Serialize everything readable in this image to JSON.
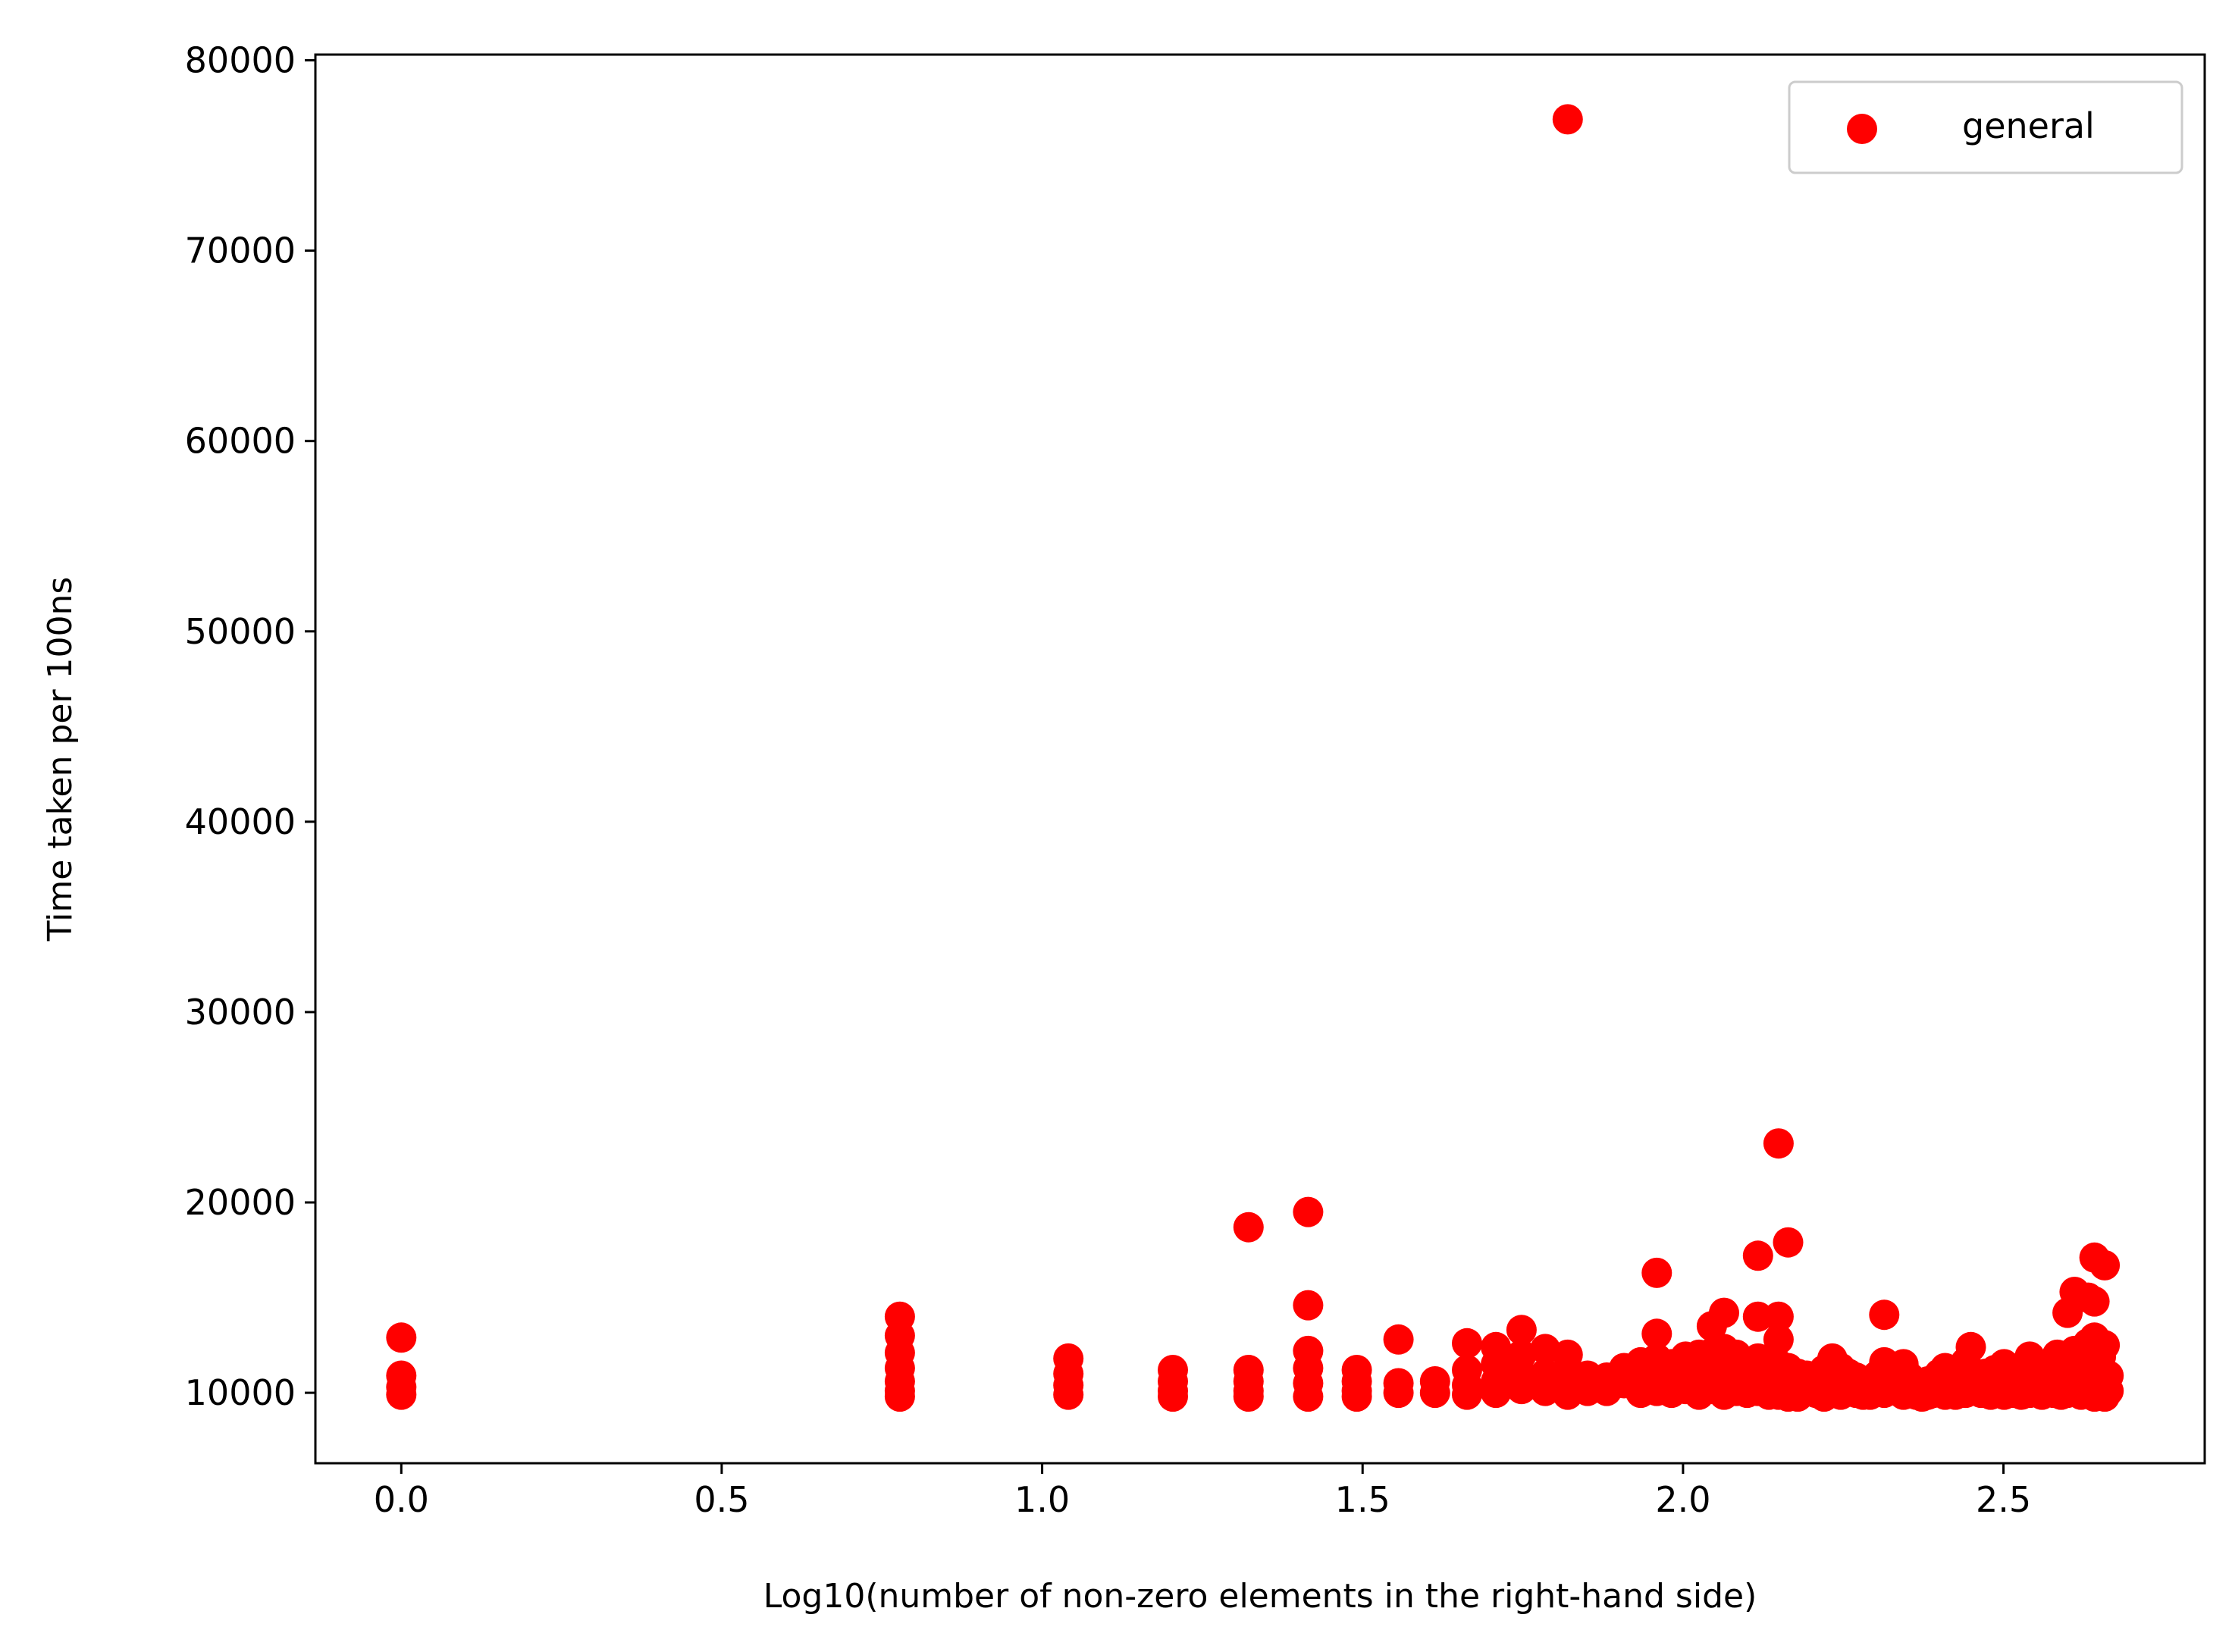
{
  "colors": {
    "series": "#ff0000",
    "axes": "#000000",
    "legend_border": "#cccccc",
    "background": "#ffffff"
  },
  "chart_data": {
    "type": "scatter",
    "title": "",
    "xlabel": "Log10(number of non-zero elements in the right-hand side)",
    "ylabel": "Time taken per 100ns",
    "xlim": [
      -0.134,
      2.814
    ],
    "ylim": [
      6300,
      80300
    ],
    "x_ticks": [
      0.0,
      0.5,
      1.0,
      1.5,
      2.0,
      2.5
    ],
    "x_tick_labels": [
      "0.0",
      "0.5",
      "1.0",
      "1.5",
      "2.0",
      "2.5"
    ],
    "y_ticks": [
      10000,
      20000,
      30000,
      40000,
      50000,
      60000,
      70000,
      80000
    ],
    "y_tick_labels": [
      "10000",
      "20000",
      "30000",
      "40000",
      "50000",
      "60000",
      "70000",
      "80000"
    ],
    "grid": false,
    "legend": {
      "position": "top-right",
      "entries": [
        "general"
      ]
    },
    "series": [
      {
        "name": "general",
        "color": "#ff0000",
        "points": [
          [
            0.0,
            12900
          ],
          [
            0.0,
            10900
          ],
          [
            0.0,
            10300
          ],
          [
            0.0,
            9900
          ],
          [
            0.778,
            14000
          ],
          [
            0.778,
            13000
          ],
          [
            0.778,
            12100
          ],
          [
            0.778,
            11300
          ],
          [
            0.778,
            10600
          ],
          [
            0.778,
            10100
          ],
          [
            0.778,
            9800
          ],
          [
            1.041,
            11800
          ],
          [
            1.041,
            11000
          ],
          [
            1.041,
            10400
          ],
          [
            1.041,
            9900
          ],
          [
            1.204,
            11200
          ],
          [
            1.204,
            10600
          ],
          [
            1.204,
            10100
          ],
          [
            1.204,
            9800
          ],
          [
            1.322,
            18700
          ],
          [
            1.322,
            11200
          ],
          [
            1.322,
            10600
          ],
          [
            1.322,
            10100
          ],
          [
            1.322,
            9800
          ],
          [
            1.415,
            19500
          ],
          [
            1.415,
            14600
          ],
          [
            1.415,
            12200
          ],
          [
            1.415,
            11300
          ],
          [
            1.415,
            10500
          ],
          [
            1.415,
            9800
          ],
          [
            1.491,
            11200
          ],
          [
            1.491,
            10600
          ],
          [
            1.491,
            10100
          ],
          [
            1.491,
            9800
          ],
          [
            1.556,
            12800
          ],
          [
            1.556,
            10500
          ],
          [
            1.556,
            10000
          ],
          [
            1.613,
            10600
          ],
          [
            1.613,
            10000
          ],
          [
            1.663,
            12600
          ],
          [
            1.663,
            11200
          ],
          [
            1.663,
            10400
          ],
          [
            1.663,
            9900
          ],
          [
            1.708,
            12400
          ],
          [
            1.708,
            11500
          ],
          [
            1.708,
            10600
          ],
          [
            1.708,
            10000
          ],
          [
            1.748,
            13300
          ],
          [
            1.748,
            12000
          ],
          [
            1.748,
            11000
          ],
          [
            1.748,
            10200
          ],
          [
            1.785,
            12300
          ],
          [
            1.785,
            11000
          ],
          [
            1.785,
            10100
          ],
          [
            1.82,
            76900
          ],
          [
            1.82,
            12000
          ],
          [
            1.82,
            11100
          ],
          [
            1.82,
            10300
          ],
          [
            1.82,
            9900
          ],
          [
            1.851,
            10900
          ],
          [
            1.851,
            10100
          ],
          [
            1.881,
            10800
          ],
          [
            1.881,
            10100
          ],
          [
            1.908,
            11300
          ],
          [
            1.908,
            10500
          ],
          [
            1.934,
            11600
          ],
          [
            1.934,
            10700
          ],
          [
            1.934,
            10000
          ],
          [
            1.959,
            16300
          ],
          [
            1.959,
            13100
          ],
          [
            1.959,
            11800
          ],
          [
            1.959,
            10800
          ],
          [
            1.959,
            10100
          ],
          [
            1.982,
            11500
          ],
          [
            1.982,
            10600
          ],
          [
            1.982,
            10000
          ],
          [
            2.004,
            11900
          ],
          [
            2.004,
            10900
          ],
          [
            2.004,
            10200
          ],
          [
            2.025,
            12000
          ],
          [
            2.025,
            11100
          ],
          [
            2.025,
            10300
          ],
          [
            2.025,
            9900
          ],
          [
            2.045,
            13500
          ],
          [
            2.045,
            12100
          ],
          [
            2.045,
            11000
          ],
          [
            2.045,
            10200
          ],
          [
            2.064,
            14200
          ],
          [
            2.064,
            12300
          ],
          [
            2.064,
            11100
          ],
          [
            2.064,
            10300
          ],
          [
            2.064,
            9900
          ],
          [
            2.083,
            12000
          ],
          [
            2.083,
            10900
          ],
          [
            2.083,
            10100
          ],
          [
            2.1,
            11600
          ],
          [
            2.1,
            10700
          ],
          [
            2.1,
            10000
          ],
          [
            2.117,
            17200
          ],
          [
            2.117,
            14000
          ],
          [
            2.117,
            11800
          ],
          [
            2.117,
            10800
          ],
          [
            2.117,
            10100
          ],
          [
            2.134,
            11400
          ],
          [
            2.134,
            10500
          ],
          [
            2.134,
            9900
          ],
          [
            2.149,
            23100
          ],
          [
            2.149,
            14000
          ],
          [
            2.149,
            12800
          ],
          [
            2.149,
            11500
          ],
          [
            2.149,
            10500
          ],
          [
            2.149,
            9900
          ],
          [
            2.164,
            17900
          ],
          [
            2.164,
            11300
          ],
          [
            2.164,
            10400
          ],
          [
            2.164,
            9800
          ],
          [
            2.179,
            11000
          ],
          [
            2.179,
            10200
          ],
          [
            2.179,
            9800
          ],
          [
            2.193,
            10900
          ],
          [
            2.193,
            10100
          ],
          [
            2.207,
            10700
          ],
          [
            2.207,
            10000
          ],
          [
            2.22,
            11200
          ],
          [
            2.22,
            10400
          ],
          [
            2.22,
            9800
          ],
          [
            2.233,
            11800
          ],
          [
            2.233,
            10900
          ],
          [
            2.233,
            10100
          ],
          [
            2.246,
            11300
          ],
          [
            2.246,
            10500
          ],
          [
            2.246,
            9900
          ],
          [
            2.258,
            11000
          ],
          [
            2.258,
            10200
          ],
          [
            2.27,
            10800
          ],
          [
            2.27,
            10000
          ],
          [
            2.281,
            10500
          ],
          [
            2.281,
            9900
          ],
          [
            2.292,
            10600
          ],
          [
            2.292,
            9900
          ],
          [
            2.303,
            10900
          ],
          [
            2.303,
            10100
          ],
          [
            2.314,
            14100
          ],
          [
            2.314,
            11600
          ],
          [
            2.314,
            10700
          ],
          [
            2.314,
            10000
          ],
          [
            2.324,
            11100
          ],
          [
            2.324,
            10300
          ],
          [
            2.334,
            10900
          ],
          [
            2.334,
            10100
          ],
          [
            2.344,
            11500
          ],
          [
            2.344,
            10600
          ],
          [
            2.344,
            9900
          ],
          [
            2.354,
            10800
          ],
          [
            2.354,
            10100
          ],
          [
            2.364,
            10500
          ],
          [
            2.364,
            9900
          ],
          [
            2.373,
            10400
          ],
          [
            2.373,
            9800
          ],
          [
            2.382,
            10600
          ],
          [
            2.382,
            9900
          ],
          [
            2.391,
            10700
          ],
          [
            2.391,
            10000
          ],
          [
            2.4,
            11000
          ],
          [
            2.4,
            10200
          ],
          [
            2.409,
            11300
          ],
          [
            2.409,
            10500
          ],
          [
            2.409,
            9900
          ],
          [
            2.417,
            10800
          ],
          [
            2.417,
            10100
          ],
          [
            2.425,
            10600
          ],
          [
            2.425,
            9900
          ],
          [
            2.433,
            11100
          ],
          [
            2.433,
            10300
          ],
          [
            2.441,
            11600
          ],
          [
            2.441,
            10700
          ],
          [
            2.441,
            10000
          ],
          [
            2.449,
            12400
          ],
          [
            2.449,
            11000
          ],
          [
            2.449,
            10200
          ],
          [
            2.457,
            10900
          ],
          [
            2.457,
            10100
          ],
          [
            2.465,
            10700
          ],
          [
            2.465,
            10000
          ],
          [
            2.472,
            11000
          ],
          [
            2.472,
            10200
          ],
          [
            2.48,
            10500
          ],
          [
            2.48,
            9900
          ],
          [
            2.487,
            11200
          ],
          [
            2.487,
            10400
          ],
          [
            2.494,
            10900
          ],
          [
            2.494,
            10100
          ],
          [
            2.501,
            11500
          ],
          [
            2.501,
            10600
          ],
          [
            2.501,
            9900
          ],
          [
            2.508,
            10800
          ],
          [
            2.508,
            10000
          ],
          [
            2.515,
            10700
          ],
          [
            2.515,
            10000
          ],
          [
            2.521,
            11000
          ],
          [
            2.521,
            10200
          ],
          [
            2.528,
            10500
          ],
          [
            2.528,
            9900
          ],
          [
            2.535,
            11300
          ],
          [
            2.535,
            10400
          ],
          [
            2.541,
            11900
          ],
          [
            2.541,
            10800
          ],
          [
            2.541,
            10000
          ],
          [
            2.547,
            11100
          ],
          [
            2.547,
            10300
          ],
          [
            2.554,
            10800
          ],
          [
            2.554,
            10000
          ],
          [
            2.56,
            10600
          ],
          [
            2.56,
            9900
          ],
          [
            2.566,
            10900
          ],
          [
            2.566,
            10100
          ],
          [
            2.572,
            11200
          ],
          [
            2.572,
            10400
          ],
          [
            2.578,
            10700
          ],
          [
            2.578,
            10000
          ],
          [
            2.584,
            12000
          ],
          [
            2.584,
            11100
          ],
          [
            2.584,
            10300
          ],
          [
            2.59,
            11300
          ],
          [
            2.59,
            10500
          ],
          [
            2.59,
            9900
          ],
          [
            2.6,
            14200
          ],
          [
            2.6,
            11600
          ],
          [
            2.6,
            10700
          ],
          [
            2.6,
            10000
          ],
          [
            2.611,
            15300
          ],
          [
            2.611,
            12200
          ],
          [
            2.611,
            11000
          ],
          [
            2.611,
            10200
          ],
          [
            2.621,
            11400
          ],
          [
            2.621,
            10500
          ],
          [
            2.621,
            9900
          ],
          [
            2.632,
            15000
          ],
          [
            2.632,
            12600
          ],
          [
            2.632,
            11200
          ],
          [
            2.632,
            10300
          ],
          [
            2.642,
            17100
          ],
          [
            2.642,
            14800
          ],
          [
            2.642,
            12900
          ],
          [
            2.642,
            11300
          ],
          [
            2.642,
            10400
          ],
          [
            2.642,
            9800
          ],
          [
            2.652,
            11900
          ],
          [
            2.652,
            10900
          ],
          [
            2.652,
            10100
          ],
          [
            2.658,
            16700
          ],
          [
            2.658,
            12500
          ],
          [
            2.658,
            11000
          ],
          [
            2.658,
            10300
          ],
          [
            2.658,
            9800
          ],
          [
            2.664,
            10900
          ],
          [
            2.664,
            10100
          ]
        ]
      }
    ]
  }
}
